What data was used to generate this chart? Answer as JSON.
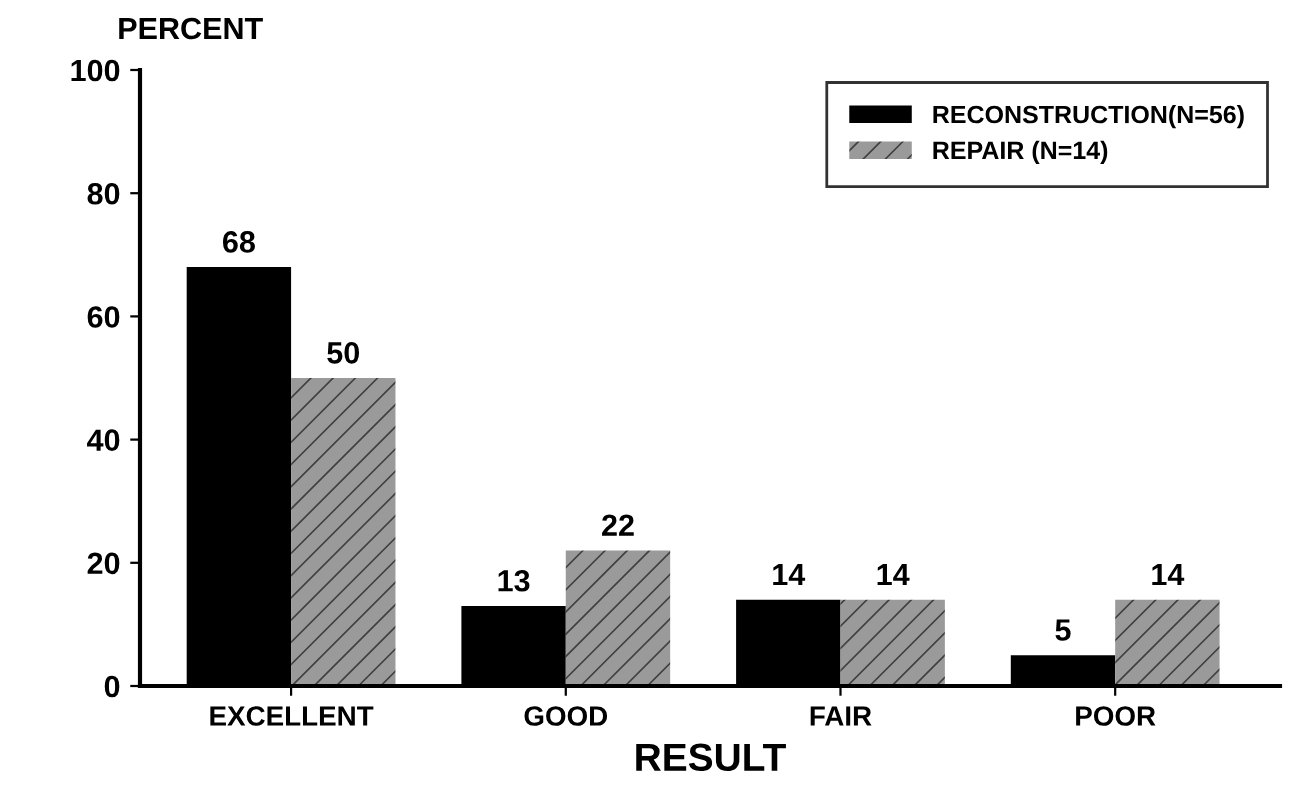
{
  "chart_data": {
    "type": "bar",
    "ylabel": "PERCENT",
    "xlabel": "RESULT",
    "categories": [
      "EXCELLENT",
      "GOOD",
      "FAIR",
      "POOR"
    ],
    "series": [
      {
        "name": "RECONSTRUCTION(N=56)",
        "color": "#000000",
        "values": [
          68,
          13,
          14,
          5
        ]
      },
      {
        "name": "REPAIR (N=14)",
        "color": "#9a9a9a",
        "values": [
          50,
          22,
          14,
          14
        ]
      }
    ],
    "ylim": [
      0,
      100
    ],
    "yticks": [
      0,
      20,
      40,
      60,
      80,
      100
    ],
    "grid": false,
    "legend": "top right",
    "data_labels": true
  }
}
